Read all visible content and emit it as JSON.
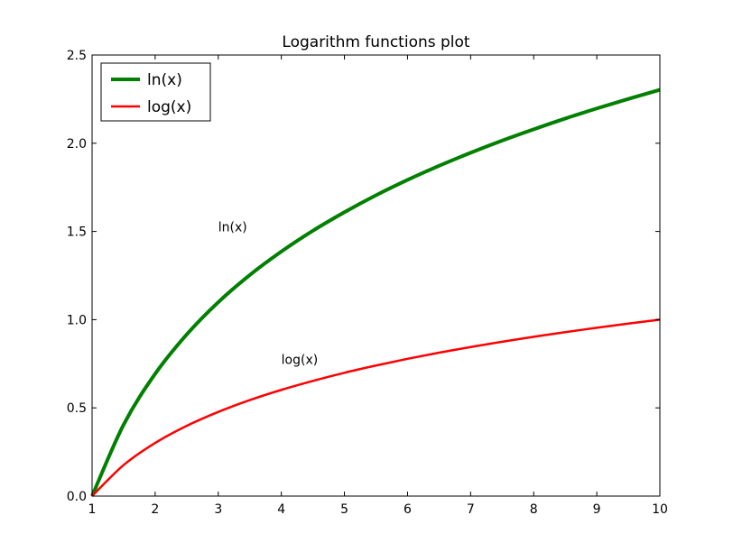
{
  "chart_data": {
    "type": "line",
    "title": "Logarithm functions plot",
    "xlabel": "",
    "ylabel": "",
    "xlim": [
      1,
      10
    ],
    "ylim": [
      0,
      2.5
    ],
    "xticks": [
      1,
      2,
      3,
      4,
      5,
      6,
      7,
      8,
      9,
      10
    ],
    "yticks": [
      0.0,
      0.5,
      1.0,
      1.5,
      2.0,
      2.5
    ],
    "grid": false,
    "legend_position": "top-left",
    "series": [
      {
        "name": "ln(x)",
        "color": "#008000",
        "x": [
          1,
          1.5,
          2,
          2.5,
          3,
          3.5,
          4,
          4.5,
          5,
          5.5,
          6,
          6.5,
          7,
          7.5,
          8,
          8.5,
          9,
          9.5,
          10
        ],
        "y": [
          0,
          0.405,
          0.693,
          0.916,
          1.099,
          1.253,
          1.386,
          1.504,
          1.609,
          1.705,
          1.792,
          1.872,
          1.946,
          2.015,
          2.079,
          2.14,
          2.197,
          2.251,
          2.303
        ]
      },
      {
        "name": "log(x)",
        "color": "#ff0000",
        "x": [
          1,
          1.5,
          2,
          2.5,
          3,
          3.5,
          4,
          4.5,
          5,
          5.5,
          6,
          6.5,
          7,
          7.5,
          8,
          8.5,
          9,
          9.5,
          10
        ],
        "y": [
          0,
          0.176,
          0.301,
          0.398,
          0.477,
          0.544,
          0.602,
          0.653,
          0.699,
          0.74,
          0.778,
          0.813,
          0.845,
          0.875,
          0.903,
          0.929,
          0.954,
          0.978,
          1.0
        ]
      }
    ],
    "annotations": [
      {
        "text": "ln(x)",
        "x": 3.0,
        "y": 1.5
      },
      {
        "text": "log(x)",
        "x": 4.0,
        "y": 0.75
      }
    ]
  }
}
